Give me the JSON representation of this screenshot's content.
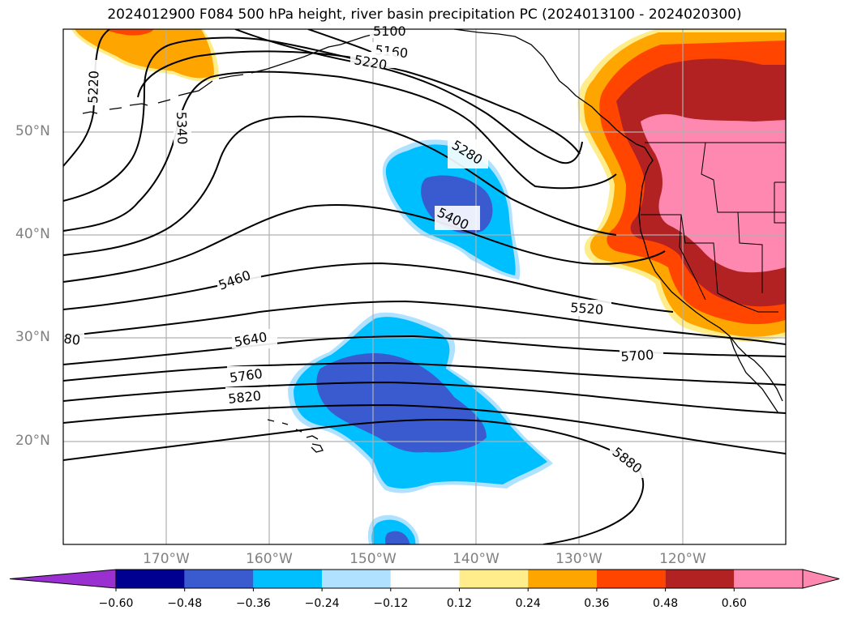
{
  "title": "2024012900 F084 500 hPa height, river basin precipitation PC (2024013100 - 2024020300)",
  "lat_labels": [
    "50°N",
    "40°N",
    "30°N",
    "20°N"
  ],
  "lon_labels": [
    "170°W",
    "160°W",
    "150°W",
    "140°W",
    "130°W",
    "120°W"
  ],
  "contour_labels": [
    "5100",
    "5160",
    "5220",
    "5220",
    "5340",
    "5280",
    "5400",
    "5460",
    "5520",
    "80",
    "5640",
    "5700",
    "5760",
    "5820",
    "5880"
  ],
  "colorbar": {
    "ticks": [
      "−0.60",
      "−0.48",
      "−0.36",
      "−0.24",
      "−0.12",
      "0.12",
      "0.24",
      "0.36",
      "0.48",
      "0.60"
    ],
    "colors": [
      "#9b30d0",
      "#000090",
      "#3a5bcf",
      "#00bfff",
      "#b0e2ff",
      "#ffffff",
      "#ffec8b",
      "#ffa500",
      "#ff4500",
      "#b22222",
      "#ff88b0",
      "#ff88b0"
    ]
  },
  "colors": {
    "map_background": "#ffffff",
    "gridline": "#b0b0b0",
    "label_gray": "#808080"
  }
}
